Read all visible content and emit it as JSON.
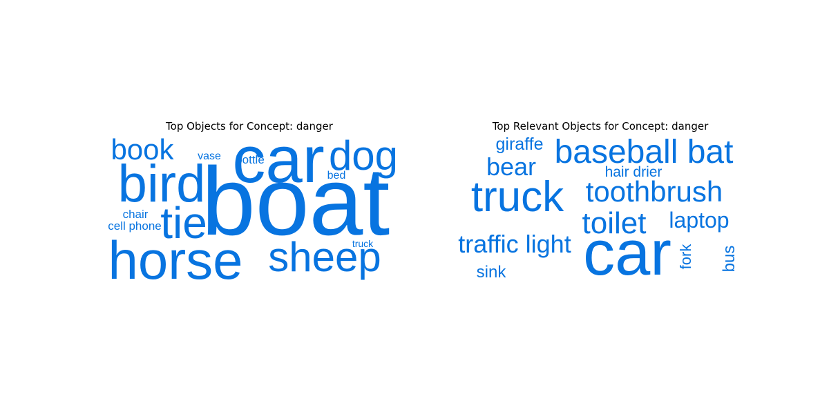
{
  "colors": {
    "word": "#0874e0",
    "title": "#000000",
    "background": "#ffffff"
  },
  "chart_data": [
    {
      "type": "wordcloud",
      "title": "Top Objects for Concept: danger",
      "words": [
        {
          "text": "boat",
          "weight": 100
        },
        {
          "text": "car",
          "weight": 72
        },
        {
          "text": "horse",
          "weight": 62
        },
        {
          "text": "bird",
          "weight": 62
        },
        {
          "text": "sheep",
          "weight": 46
        },
        {
          "text": "tie",
          "weight": 52
        },
        {
          "text": "dog",
          "weight": 46
        },
        {
          "text": "book",
          "weight": 36
        },
        {
          "text": "bottle",
          "weight": 15
        },
        {
          "text": "cell phone",
          "weight": 14
        },
        {
          "text": "chair",
          "weight": 14
        },
        {
          "text": "vase",
          "weight": 13
        },
        {
          "text": "bed",
          "weight": 13
        },
        {
          "text": "truck",
          "weight": 12
        }
      ]
    },
    {
      "type": "wordcloud",
      "title": "Top Relevant Objects for Concept: danger",
      "words": [
        {
          "text": "car",
          "weight": 100
        },
        {
          "text": "truck",
          "weight": 64
        },
        {
          "text": "baseball bat",
          "weight": 48
        },
        {
          "text": "toothbrush",
          "weight": 42
        },
        {
          "text": "toilet",
          "weight": 42
        },
        {
          "text": "traffic light",
          "weight": 36
        },
        {
          "text": "bear",
          "weight": 35
        },
        {
          "text": "laptop",
          "weight": 30
        },
        {
          "text": "giraffe",
          "weight": 25
        },
        {
          "text": "sink",
          "weight": 24
        },
        {
          "text": "hair drier",
          "weight": 22
        },
        {
          "text": "fork",
          "weight": 20
        },
        {
          "text": "bus",
          "weight": 22
        }
      ]
    }
  ]
}
